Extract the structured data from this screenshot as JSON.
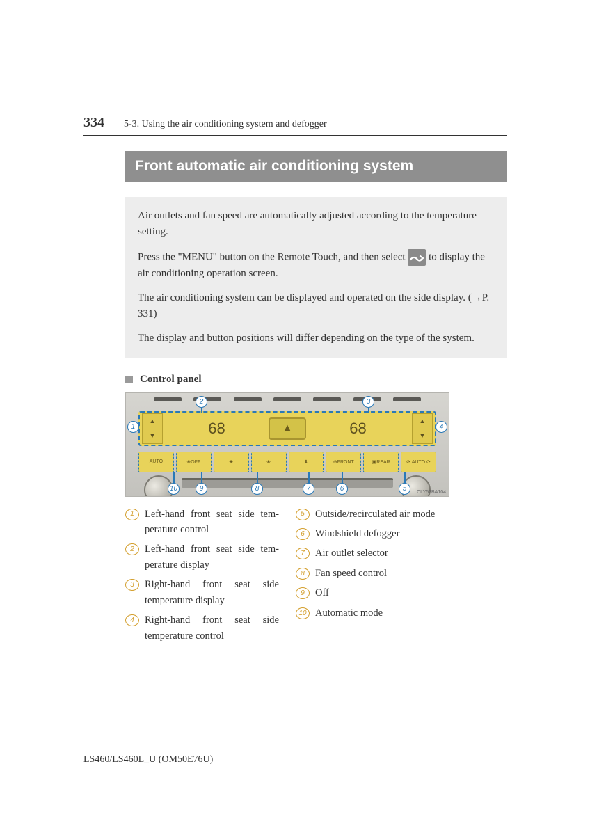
{
  "header": {
    "page_number": "334",
    "section_ref": "5-3. Using the air conditioning system and defogger"
  },
  "title": "Front automatic air conditioning system",
  "intro": {
    "p1": "Air outlets and fan speed are automatically adjusted according to the temperature setting.",
    "p2_a": "Press the \"MENU\" button on the Remote Touch, and then select ",
    "p2_b": " to display the air conditioning operation screen.",
    "p3_a": "The air conditioning system can be displayed and operated on the side display. (",
    "p3_arrow": "→",
    "p3_b": "P. 331)",
    "p4": "The display and button positions will differ depending on the type of the system."
  },
  "subheading": "Control panel",
  "diagram": {
    "temp_left": "68",
    "temp_right": "68",
    "hazard_symbol": "▲",
    "buttons": [
      "AUTO",
      "❀OFF",
      "❀",
      "❀",
      "⬇",
      "⊕FRONT",
      "▣REAR",
      "⟳ AUTO ⟳"
    ],
    "image_code": "CLY52BA104",
    "callout_color": "#2a79b7"
  },
  "legend": {
    "left": [
      {
        "n": "1",
        "t1": "Left-hand front seat side tem-",
        "t2": "perature control",
        "justify": true
      },
      {
        "n": "2",
        "t1": "Left-hand front seat side tem-",
        "t2": "perature display",
        "justify": true
      },
      {
        "n": "3",
        "t1": "Right-hand front seat side",
        "t2": "temperature display",
        "justify": true
      },
      {
        "n": "4",
        "t1": "Right-hand front seat side",
        "t2": "temperature control",
        "justify": true
      }
    ],
    "right": [
      {
        "n": "5",
        "t1": "Outside/recirculated air mode"
      },
      {
        "n": "6",
        "t1": "Windshield defogger"
      },
      {
        "n": "7",
        "t1": "Air outlet selector"
      },
      {
        "n": "8",
        "t1": "Fan speed control"
      },
      {
        "n": "9",
        "t1": "Off"
      },
      {
        "n": "10",
        "t1": "Automatic mode"
      }
    ]
  },
  "footer": "LS460/LS460L_U (OM50E76U)"
}
